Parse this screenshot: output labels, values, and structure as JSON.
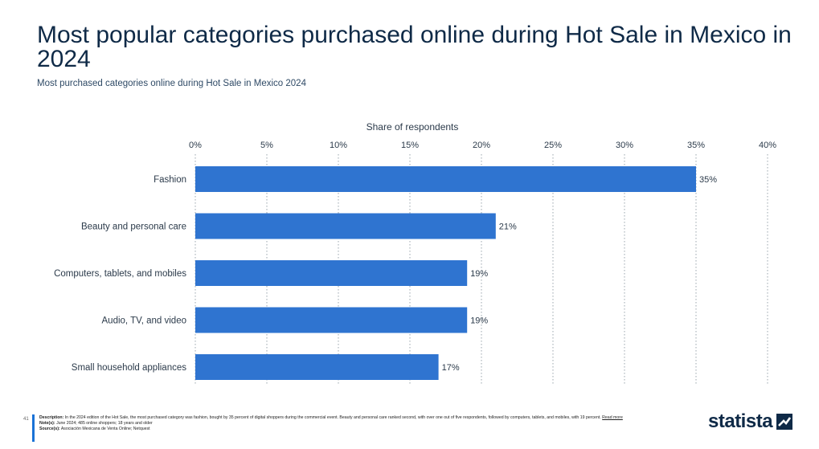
{
  "header": {
    "title": "Most popular categories purchased online during Hot Sale in Mexico in 2024",
    "subtitle": "Most purchased categories online during Hot Sale in Mexico 2024"
  },
  "chart_data": {
    "type": "bar",
    "orientation": "horizontal",
    "title": "Most popular categories purchased online during Hot Sale in Mexico in 2024",
    "subtitle": "Most purchased categories online during Hot Sale in Mexico 2024",
    "xlabel": "Share of respondents",
    "ylabel": "",
    "categories": [
      "Fashion",
      "Beauty and personal care",
      "Computers, tablets, and mobiles",
      "Audio, TV, and video",
      "Small household appliances"
    ],
    "values": [
      35,
      21,
      19,
      19,
      17
    ],
    "value_labels": [
      "35%",
      "21%",
      "19%",
      "19%",
      "17%"
    ],
    "xlim": [
      0,
      40
    ],
    "ticks": [
      0,
      5,
      10,
      15,
      20,
      25,
      30,
      35,
      40
    ],
    "tick_labels": [
      "0%",
      "5%",
      "10%",
      "15%",
      "20%",
      "25%",
      "30%",
      "35%",
      "40%"
    ],
    "grid": true,
    "legend": "none",
    "bar_color": "#2f74d0"
  },
  "footer": {
    "page_number": "41",
    "description_label": "Description:",
    "description": "In the 2024 edition of the Hot Sale, the most purchased category was fashion, bought by 35 percent of digital shoppers during the commercial event. Beauty and personal care ranked second, with over one out of five respondents, followed by computers, tablets, and mobiles, with 19 percent.",
    "read_more": "Read more",
    "notes_label": "Note(s):",
    "notes": "June 2024; 485 online shoppers; 18 years and older",
    "sources_label": "Source(s):",
    "sources": "Asociación Mexicana de Venta Online; Netquest"
  },
  "logo": {
    "text": "statista",
    "icon": "statista-logo-icon"
  }
}
